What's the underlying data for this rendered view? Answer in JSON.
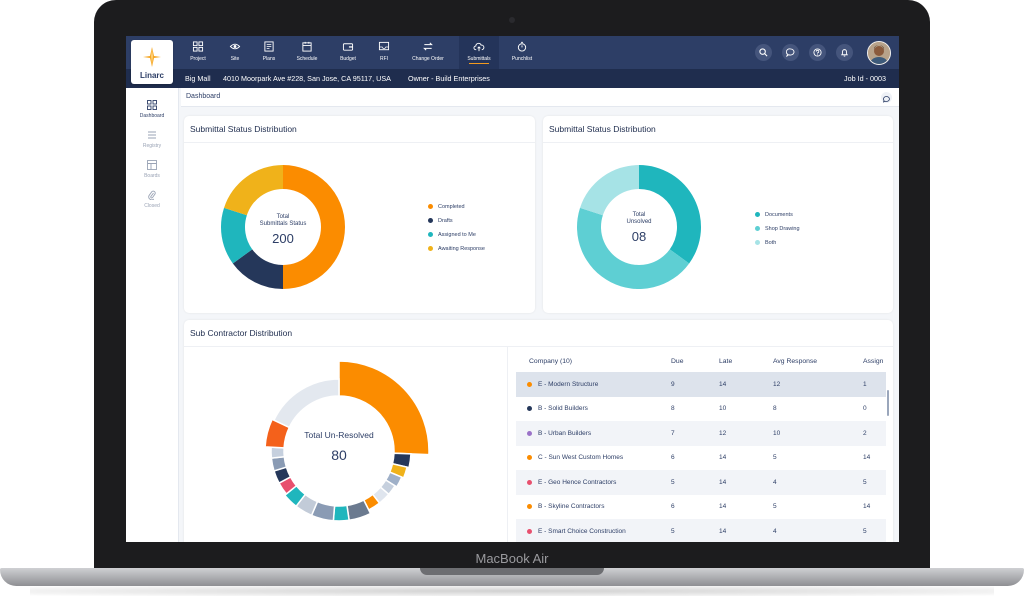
{
  "device": {
    "label": "MacBook Air"
  },
  "app": {
    "logo_text": "Linarc"
  },
  "nav": {
    "items": [
      {
        "label": "Project",
        "icon": "grid-icon"
      },
      {
        "label": "Site",
        "icon": "eye-icon"
      },
      {
        "label": "Plans",
        "icon": "plans-icon"
      },
      {
        "label": "Schedule",
        "icon": "calendar-icon"
      },
      {
        "label": "Budget",
        "icon": "wallet-icon"
      },
      {
        "label": "RFI",
        "icon": "inbox-icon"
      },
      {
        "label": "Change Order",
        "icon": "swap-icon"
      },
      {
        "label": "Submittals",
        "icon": "cloud-upload-icon"
      },
      {
        "label": "Punchlist",
        "icon": "stopwatch-icon"
      }
    ],
    "active": "Submittals"
  },
  "project": {
    "name": "Big Mall",
    "address": "4010 Moorpark Ave #228, San Jose, CA 95117, USA",
    "owner": "Owner - Build Enterprises",
    "job_id": "Job Id - 0003"
  },
  "sidebar": {
    "items": [
      {
        "label": "Dashboard"
      },
      {
        "label": "Registry"
      },
      {
        "label": "Boards"
      },
      {
        "label": "Closed"
      }
    ]
  },
  "breadcrumb": {
    "label": "Dashboard"
  },
  "colors": {
    "navy": "#2d3e66",
    "orange": "#fb8c00",
    "teal": "#1fb6bd",
    "yellow": "#f0b21a",
    "dark_navy": "#25375a"
  },
  "status_card": {
    "title": "Submittal Status Distribution",
    "center_line1": "Total",
    "center_line2": "Submittals Status",
    "center_value": "200",
    "legend": [
      {
        "label": "Completed",
        "value": 100,
        "color": "#fb8c00"
      },
      {
        "label": "Drafts",
        "value": 30,
        "color": "#25375a"
      },
      {
        "label": "Assigned to Me",
        "value": 30,
        "color": "#1fb6bd"
      },
      {
        "label": "Awaiting Response",
        "value": 40,
        "color": "#f0b21a"
      }
    ]
  },
  "unsolved_card": {
    "title": "Submittal Status Distribution",
    "center_line1": "Total",
    "center_line2": "Unsolved",
    "center_value": "08",
    "legend": [
      {
        "label": "Documents",
        "value": 35,
        "color": "#1fb6bd"
      },
      {
        "label": "Shop Drawing",
        "value": 45,
        "color": "#5ecfd3"
      },
      {
        "label": "Both",
        "value": 20,
        "color": "#a6e3e6"
      }
    ]
  },
  "sub_card": {
    "title": "Sub Contractor Distribution",
    "center_line1": "Total Un-Resolved",
    "center_value": "80",
    "table": {
      "headers": [
        "Company (10)",
        "Due",
        "Late",
        "Avg Response",
        "Assign"
      ],
      "rows": [
        {
          "company": "E - Modern Structure",
          "due": "9",
          "late": "14",
          "avg": "12",
          "assign": "1",
          "color": "#fb8c00"
        },
        {
          "company": "B - Solid Builders",
          "due": "8",
          "late": "10",
          "avg": "8",
          "assign": "0",
          "color": "#25375a"
        },
        {
          "company": "B - Urban Builders",
          "due": "7",
          "late": "12",
          "avg": "10",
          "assign": "2",
          "color": "#9b72c8"
        },
        {
          "company": "C - Sun West Custom Homes",
          "due": "6",
          "late": "14",
          "avg": "5",
          "assign": "14",
          "color": "#fb8c00"
        },
        {
          "company": "E - Geo Hence Contractors",
          "due": "5",
          "late": "14",
          "avg": "4",
          "assign": "5",
          "color": "#e8506e"
        },
        {
          "company": "B - Skyline Contractors",
          "due": "6",
          "late": "14",
          "avg": "5",
          "assign": "14",
          "color": "#fb8c00"
        },
        {
          "company": "E - Smart Choice Construction",
          "due": "5",
          "late": "14",
          "avg": "4",
          "assign": "5",
          "color": "#e8506e"
        }
      ]
    }
  }
}
